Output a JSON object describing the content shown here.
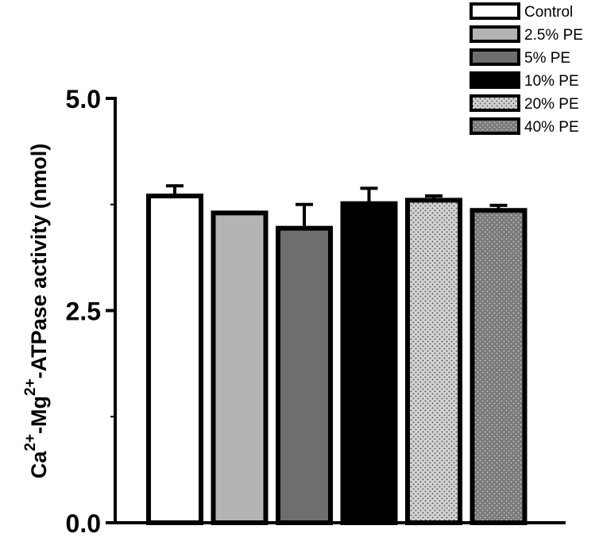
{
  "chart_data": {
    "type": "bar",
    "ylabel_parts": {
      "ca": "Ca",
      "ca_sup": "2+",
      "mg": "-Mg",
      "mg_sup": "2+",
      "rest": "-ATPase activity (nmol)"
    },
    "ylim": [
      0,
      5
    ],
    "yticks_major": [
      0,
      2.5,
      5
    ],
    "ytick_labels": [
      "0.0",
      "2.5",
      "5.0"
    ],
    "yticks_minor": [
      1.25,
      3.75
    ],
    "legend_position": "top-right",
    "grid": false,
    "series": [
      {
        "name": "Control",
        "value": 3.85,
        "error": 0.12,
        "fill": "#ffffff",
        "pattern": "none"
      },
      {
        "name": "2.5% PE",
        "value": 3.65,
        "error": 0.0,
        "fill": "#b4b4b4",
        "pattern": "none"
      },
      {
        "name": "5% PE",
        "value": 3.47,
        "error": 0.28,
        "fill": "#6e6e6e",
        "pattern": "none"
      },
      {
        "name": "10% PE",
        "value": 3.76,
        "error": 0.18,
        "fill": "#000000",
        "pattern": "none"
      },
      {
        "name": "20% PE",
        "value": 3.8,
        "error": 0.05,
        "fill": "#d2d2d2",
        "pattern": "dots-dark"
      },
      {
        "name": "40% PE",
        "value": 3.68,
        "error": 0.06,
        "fill": "#7a7a7a",
        "pattern": "dots-light"
      }
    ]
  }
}
